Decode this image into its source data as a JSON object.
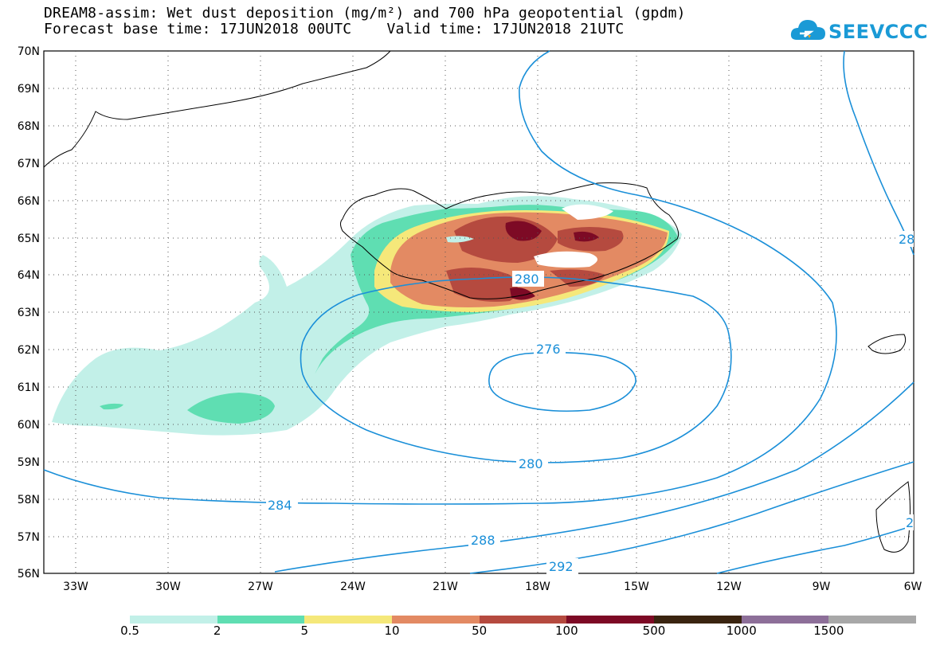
{
  "title": {
    "line1": "DREAM8-assim: Wet dust deposition (mg/m²) and 700 hPa geopotential (gpdm)",
    "line2": "Forecast base time: 17JUN2018 00UTC    Valid time: 17JUN2018 21UTC"
  },
  "logo": {
    "text": "SEEVCCC",
    "icon": "cloud-icon",
    "color": "#1a9ad6"
  },
  "map": {
    "lat_labels": [
      "70N",
      "69N",
      "68N",
      "67N",
      "66N",
      "65N",
      "64N",
      "63N",
      "62N",
      "61N",
      "60N",
      "59N",
      "58N",
      "57N",
      "56N"
    ],
    "lon_labels": [
      "33W",
      "30W",
      "27W",
      "24W",
      "21W",
      "18W",
      "15W",
      "12W",
      "9W",
      "6W"
    ],
    "lat_range": [
      56,
      70
    ],
    "lon_range": [
      -34.3,
      -6
    ],
    "contour_labels": [
      "280",
      "276",
      "280",
      "284",
      "288",
      "292",
      "28",
      "2"
    ],
    "contour_color": "#1a8fd8"
  },
  "legend": {
    "labels": [
      "0.5",
      "2",
      "5",
      "10",
      "50",
      "100",
      "500",
      "1000",
      "1500"
    ],
    "colors": [
      "#c2f0e8",
      "#5fdeb2",
      "#f5e87a",
      "#e38a63",
      "#b54a3f",
      "#7d0a25",
      "#3a2410",
      "#8d6f99",
      "#a8a8a8"
    ]
  }
}
